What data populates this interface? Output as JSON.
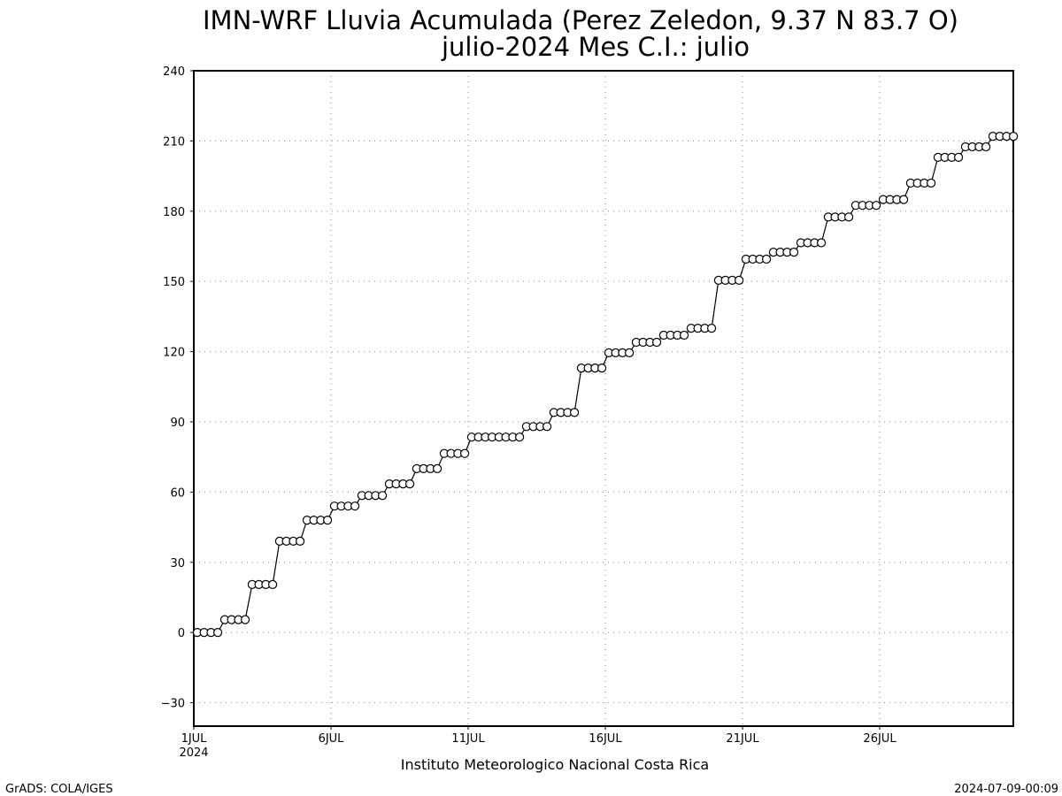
{
  "chart_data": {
    "type": "line",
    "title_line1": "IMN-WRF  Lluvia Acumulada (Perez Zeledon, 9.37  N 83.7  O)",
    "title_line2": "julio-2024 Mes C.I.: julio",
    "xlabel": "Instituto Meteorologico Nacional Costa Rica",
    "ylabel": "",
    "x_unit": "day of July 2024",
    "xlim": [
      1,
      31
    ],
    "ylim": [
      -40,
      240
    ],
    "yticks": [
      -30,
      0,
      30,
      60,
      90,
      120,
      150,
      180,
      210,
      240
    ],
    "xticks": [
      {
        "day": 1,
        "label": "1JUL",
        "sublabel": "2024"
      },
      {
        "day": 6,
        "label": "6JUL",
        "sublabel": ""
      },
      {
        "day": 11,
        "label": "11JUL",
        "sublabel": ""
      },
      {
        "day": 16,
        "label": "16JUL",
        "sublabel": ""
      },
      {
        "day": 21,
        "label": "21JUL",
        "sublabel": ""
      },
      {
        "day": 26,
        "label": "26JUL",
        "sublabel": ""
      }
    ],
    "grid": true,
    "marker": "open-circle",
    "samples_per_day": 4,
    "daily_steps": [
      {
        "day": 1,
        "values": [
          0,
          0,
          0,
          0
        ]
      },
      {
        "day": 2,
        "values": [
          5.5,
          5.5,
          5.5,
          5.5
        ]
      },
      {
        "day": 3,
        "values": [
          20.5,
          20.5,
          20.5,
          20.5
        ]
      },
      {
        "day": 4,
        "values": [
          39,
          39,
          39,
          39
        ]
      },
      {
        "day": 5,
        "values": [
          48,
          48,
          48,
          48
        ]
      },
      {
        "day": 6,
        "values": [
          54,
          54,
          54,
          54
        ]
      },
      {
        "day": 7,
        "values": [
          58.5,
          58.5,
          58.5,
          58.5
        ]
      },
      {
        "day": 8,
        "values": [
          63.5,
          63.5,
          63.5,
          63.5
        ]
      },
      {
        "day": 9,
        "values": [
          70,
          70,
          70,
          70
        ]
      },
      {
        "day": 10,
        "values": [
          76.5,
          76.5,
          76.5,
          76.5
        ]
      },
      {
        "day": 11,
        "values": [
          83.5,
          83.5,
          83.5,
          83.5
        ]
      },
      {
        "day": 12,
        "values": [
          83.5,
          83.5,
          83.5,
          83.5
        ]
      },
      {
        "day": 13,
        "values": [
          88,
          88,
          88,
          88
        ]
      },
      {
        "day": 14,
        "values": [
          94,
          94,
          94,
          94
        ]
      },
      {
        "day": 15,
        "values": [
          113,
          113,
          113,
          113
        ]
      },
      {
        "day": 16,
        "values": [
          119.5,
          119.5,
          119.5,
          119.5
        ]
      },
      {
        "day": 17,
        "values": [
          124,
          124,
          124,
          124
        ]
      },
      {
        "day": 18,
        "values": [
          127,
          127,
          127,
          127
        ]
      },
      {
        "day": 19,
        "values": [
          130,
          130,
          130,
          130
        ]
      },
      {
        "day": 20,
        "values": [
          150.5,
          150.5,
          150.5,
          150.5
        ]
      },
      {
        "day": 21,
        "values": [
          159.5,
          159.5,
          159.5,
          159.5
        ]
      },
      {
        "day": 22,
        "values": [
          162.5,
          162.5,
          162.5,
          162.5
        ]
      },
      {
        "day": 23,
        "values": [
          166.5,
          166.5,
          166.5,
          166.5
        ]
      },
      {
        "day": 24,
        "values": [
          177.5,
          177.5,
          177.5,
          177.5
        ]
      },
      {
        "day": 25,
        "values": [
          182.5,
          182.5,
          182.5,
          182.5
        ]
      },
      {
        "day": 26,
        "values": [
          185,
          185,
          185,
          185
        ]
      },
      {
        "day": 27,
        "values": [
          192,
          192,
          192,
          192
        ]
      },
      {
        "day": 28,
        "values": [
          203,
          203,
          203,
          203
        ]
      },
      {
        "day": 29,
        "values": [
          207.5,
          207.5,
          207.5,
          207.5
        ]
      },
      {
        "day": 30,
        "values": [
          212,
          212,
          212,
          212
        ]
      }
    ]
  },
  "footer": {
    "left": "GrADS: COLA/IGES",
    "right": "2024-07-09-00:09"
  }
}
